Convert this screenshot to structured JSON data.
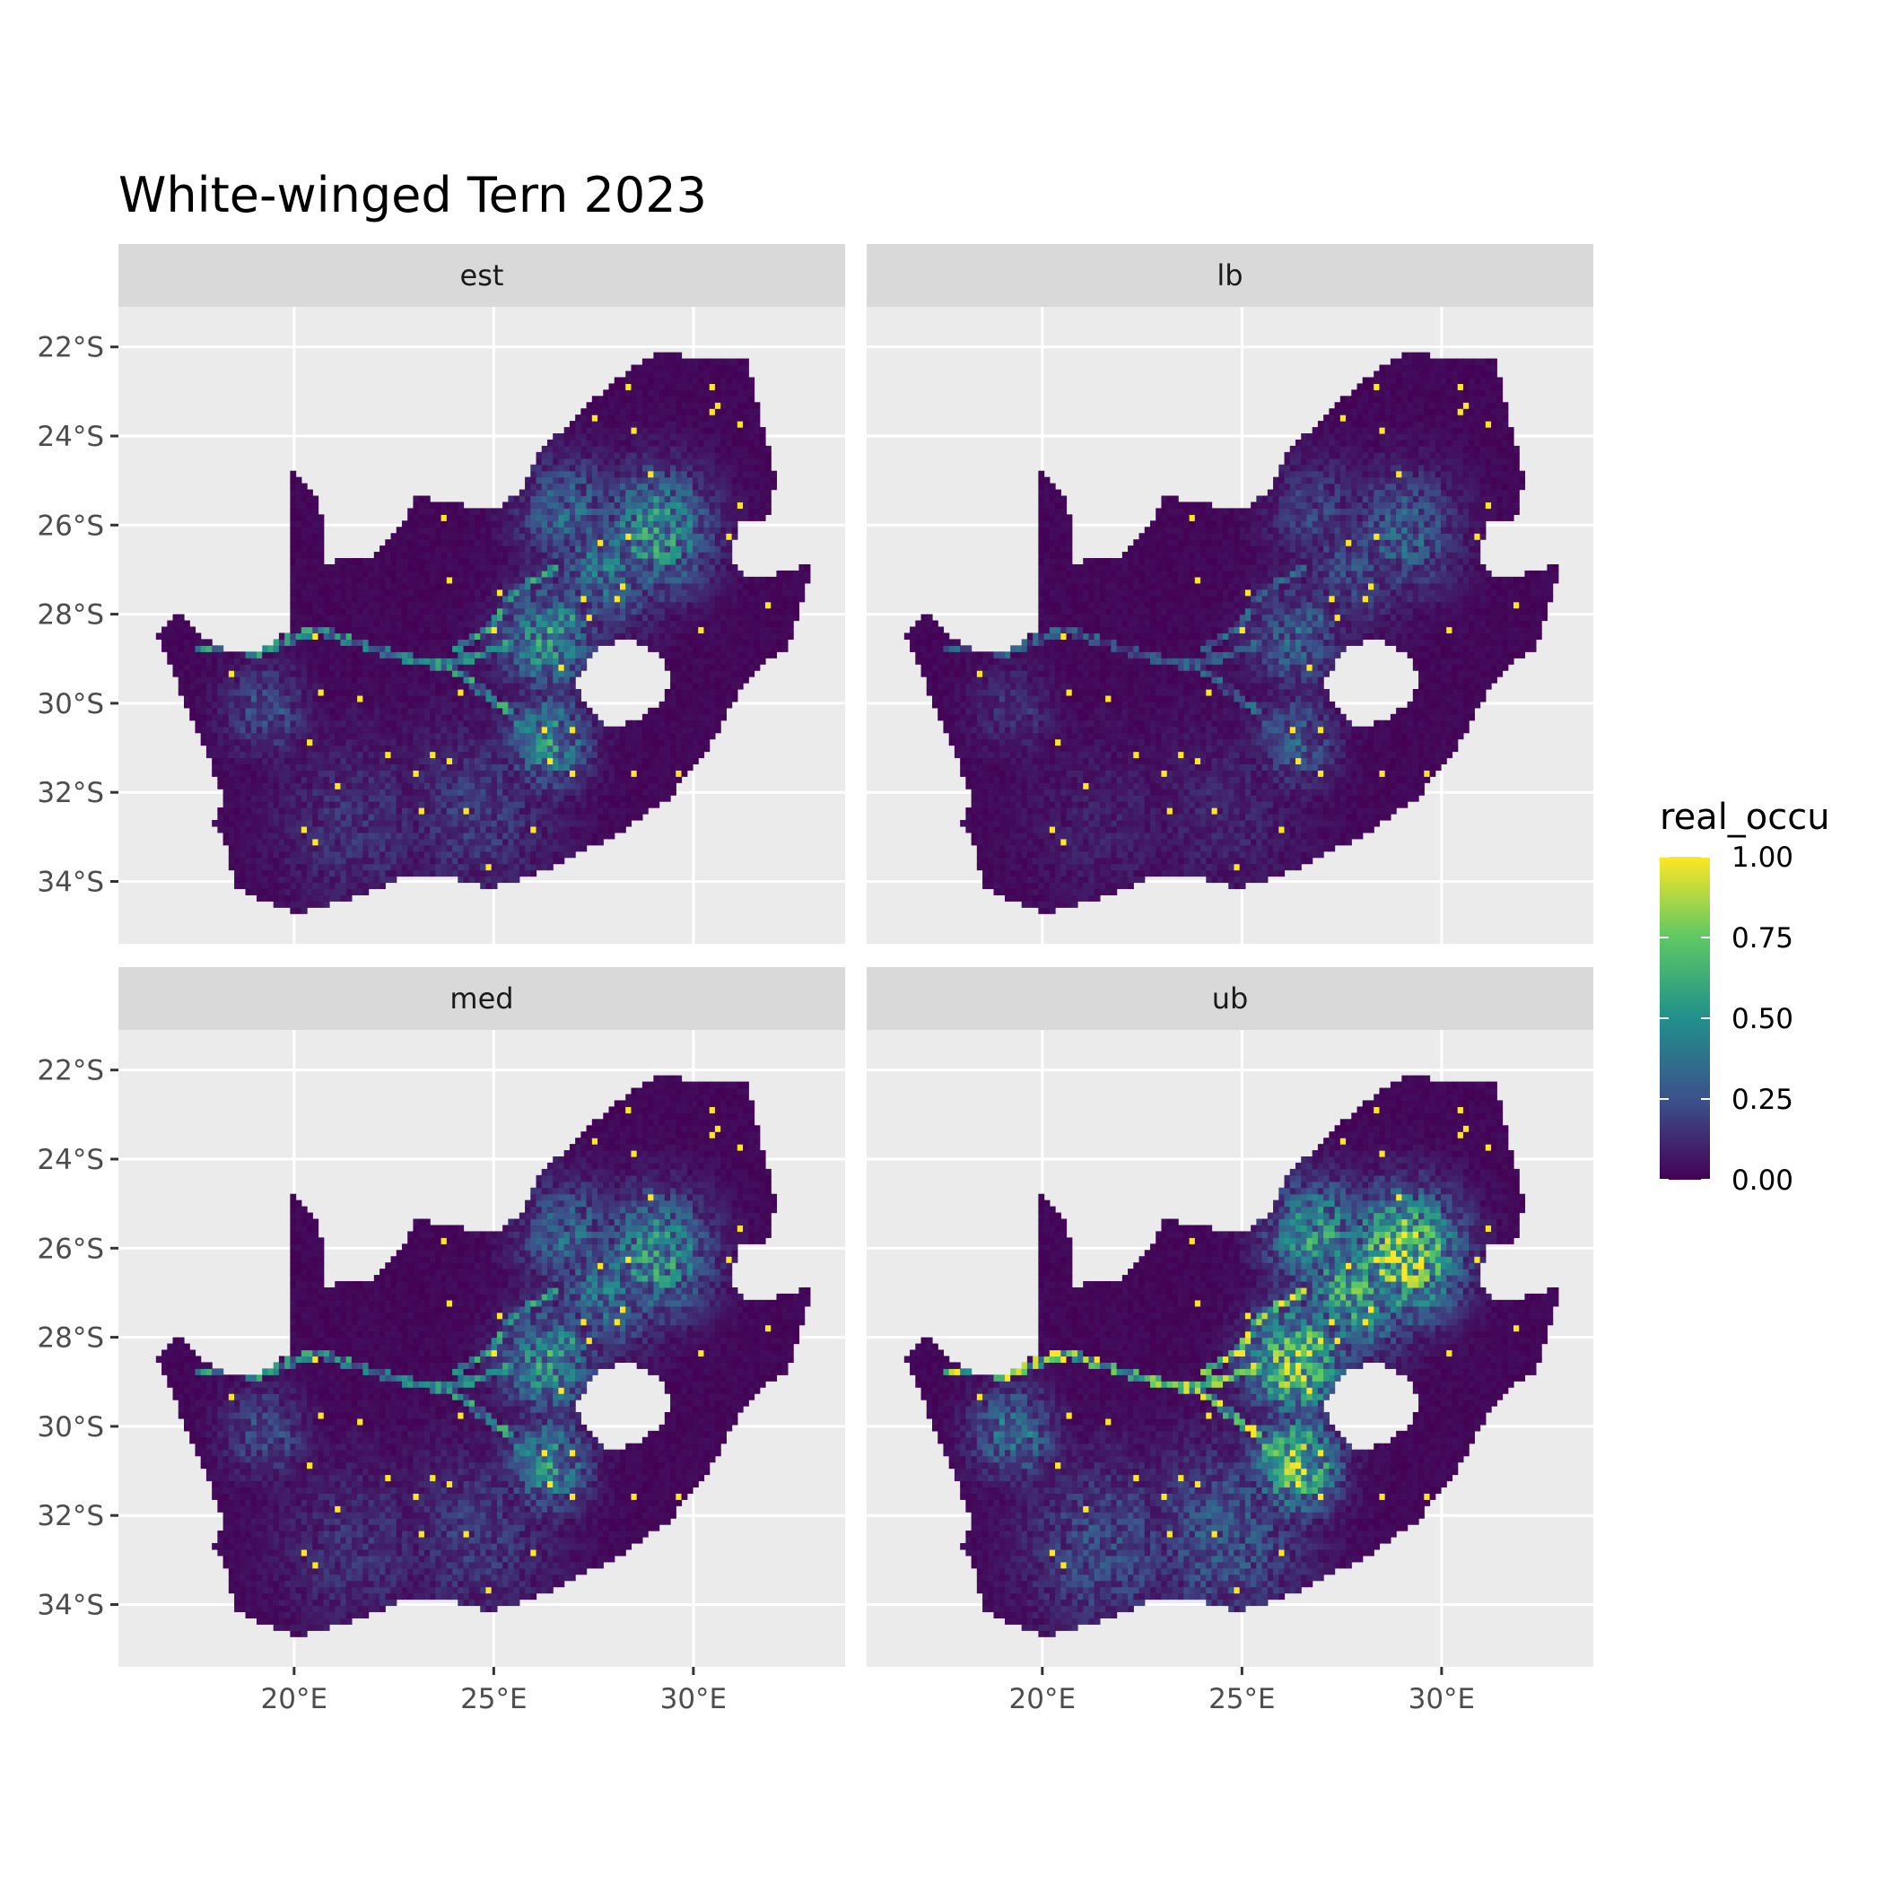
{
  "figure": {
    "title": "White-winged Tern 2023"
  },
  "chart_data": {
    "type": "heatmap",
    "title": "White-winged Tern 2023",
    "panels": [
      {
        "name": "est",
        "intensity": 0.55
      },
      {
        "name": "lb",
        "intensity": 0.32
      },
      {
        "name": "med",
        "intensity": 0.55
      },
      {
        "name": "ub",
        "intensity": 0.9
      }
    ],
    "x_axis": {
      "range": [
        15.6,
        33.8
      ],
      "ticks": [
        20,
        25,
        30
      ],
      "tick_labels": [
        "20°E",
        "25°E",
        "30°E"
      ]
    },
    "y_axis": {
      "range": [
        -35.4,
        -21.1
      ],
      "ticks": [
        -22,
        -24,
        -26,
        -28,
        -30,
        -32,
        -34
      ],
      "tick_labels": [
        "22°S",
        "24°S",
        "26°S",
        "28°S",
        "30°S",
        "32°S",
        "34°S"
      ]
    },
    "legend": {
      "title": "real_occu",
      "placement": "right",
      "range": [
        0,
        1
      ],
      "ticks": [
        1.0,
        0.75,
        0.5,
        0.25,
        0.0
      ],
      "tick_labels": [
        "1.00",
        "0.75",
        "0.50",
        "0.25",
        "0.00"
      ],
      "colormap": [
        "#440154",
        "#3b528b",
        "#21908c",
        "#5dc863",
        "#fde725"
      ]
    },
    "colors": {
      "panel_bg": "#ebebeb",
      "strip_bg": "#d9d9d9",
      "grid": "#ffffff"
    }
  }
}
